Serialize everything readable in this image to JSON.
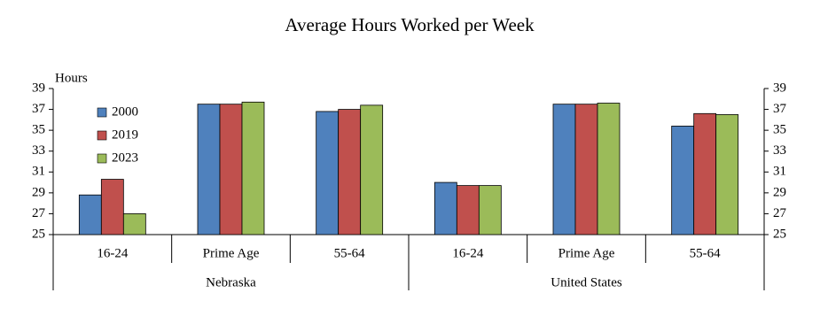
{
  "chart_data": {
    "type": "bar",
    "title": "Average Hours Worked per Week",
    "y_label": "Hours",
    "groups": [
      {
        "name": "Nebraska",
        "categories": [
          "16-24",
          "Prime Age",
          "55-64"
        ]
      },
      {
        "name": "United States",
        "categories": [
          "16-24",
          "Prime Age",
          "55-64"
        ]
      }
    ],
    "series": [
      {
        "name": "2000",
        "color": "#4f81bd",
        "values": [
          28.8,
          37.5,
          36.8,
          30.0,
          37.5,
          35.4
        ]
      },
      {
        "name": "2019",
        "color": "#c0504d",
        "values": [
          30.3,
          37.5,
          37.0,
          29.7,
          37.5,
          36.6
        ]
      },
      {
        "name": "2023",
        "color": "#9bbb59",
        "values": [
          27.0,
          37.7,
          37.4,
          29.7,
          37.6,
          36.5
        ]
      }
    ],
    "ylim": [
      25,
      39
    ],
    "yticks": [
      25,
      27,
      29,
      31,
      33,
      35,
      37,
      39
    ],
    "legend": "upper left"
  }
}
